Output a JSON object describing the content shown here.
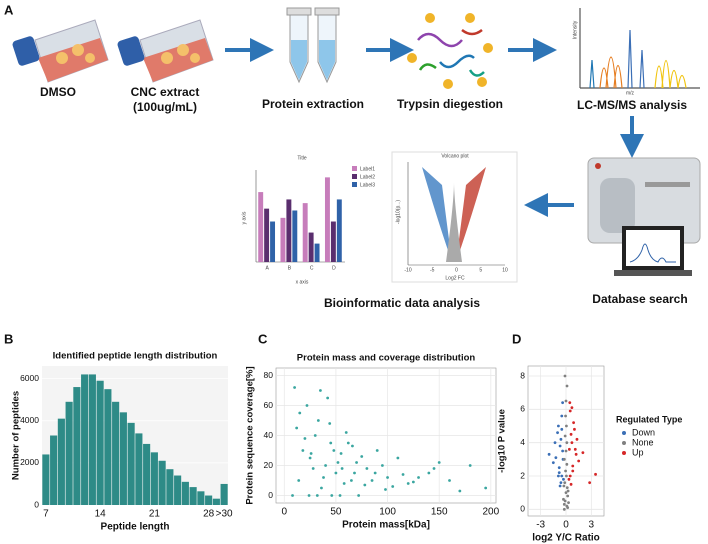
{
  "panel_a": {
    "label": "A",
    "steps": {
      "dmso": "DMSO",
      "cnc": "CNC extract",
      "cnc_dose": "(100ug/mL)",
      "extraction": "Protein extraction",
      "trypsin": "Trypsin diegestion",
      "lcms": "LC-MS/MS analysis",
      "database": "Database search",
      "bioinfo": "Bioinformatic data analysis"
    },
    "spectrum": {
      "ylabel": "Intensity",
      "xlabel": "m/z"
    },
    "mini_bar": {
      "title": "Title",
      "xlabel": "x axis",
      "ylabel": "y axis",
      "categories": [
        "A",
        "B",
        "C",
        "D"
      ],
      "ylim": [
        0,
        25
      ],
      "series": [
        {
          "name": "Label1",
          "color": "#c77dbb",
          "values": [
            19,
            12,
            16,
            23
          ]
        },
        {
          "name": "Label2",
          "color": "#5a2e6e",
          "values": [
            14.5,
            17,
            8,
            11
          ]
        },
        {
          "name": "Label3",
          "color": "#2f62a8",
          "values": [
            11,
            14,
            5,
            17
          ]
        }
      ]
    },
    "mini_volcano": {
      "title": "Volcano plot",
      "xlabel": "Log2 FC",
      "ylabel": "-log10(p...)",
      "xlim": [
        -10,
        10
      ],
      "xticks": [
        -10,
        -5,
        0,
        5,
        10
      ]
    }
  },
  "chart_data": [
    {
      "type": "bar",
      "panel": "B",
      "title": "Identified peptide length distribution",
      "xlabel": "Peptide length",
      "ylabel": "Number of peptides",
      "categories": [
        "7",
        null,
        null,
        null,
        null,
        null,
        null,
        "14",
        null,
        null,
        null,
        null,
        null,
        null,
        "21",
        null,
        null,
        null,
        null,
        null,
        null,
        "28",
        null,
        ">30"
      ],
      "values": [
        2400,
        3300,
        4100,
        4900,
        5600,
        6200,
        6200,
        5900,
        5500,
        4900,
        4400,
        3900,
        3400,
        2900,
        2500,
        2100,
        1700,
        1400,
        1100,
        850,
        650,
        450,
        300,
        1000
      ],
      "color": "#2e8b87",
      "ylim": [
        0,
        6600
      ],
      "yticks": [
        0,
        2000,
        4000,
        6000
      ],
      "grid": true
    },
    {
      "type": "scatter",
      "panel": "C",
      "title": "Protein mass and coverage distribution",
      "xlabel": "Protein mass[kDa]",
      "ylabel": "Protein sequence coverage[%]",
      "x": [
        12,
        18,
        22,
        25,
        30,
        35,
        40,
        45,
        50,
        55,
        60,
        65,
        70,
        80,
        90,
        100,
        110,
        120,
        140,
        160,
        180,
        195,
        15,
        20,
        28,
        33,
        38,
        42,
        48,
        52,
        58,
        62,
        68,
        75,
        85,
        95,
        105,
        115,
        130,
        150,
        170,
        10,
        14,
        26,
        36,
        44,
        56,
        66,
        78,
        88,
        98,
        125,
        145,
        8,
        24,
        32,
        46,
        54,
        72
      ],
      "values": [
        45,
        30,
        60,
        25,
        40,
        70,
        20,
        35,
        15,
        28,
        42,
        10,
        22,
        18,
        30,
        12,
        25,
        8,
        15,
        10,
        20,
        5,
        55,
        38,
        18,
        50,
        12,
        65,
        30,
        22,
        8,
        35,
        15,
        26,
        10,
        20,
        6,
        14,
        12,
        22,
        3,
        72,
        10,
        28,
        5,
        48,
        18,
        33,
        7,
        15,
        4,
        9,
        18,
        0,
        0,
        0,
        0,
        0,
        0
      ],
      "color": "#3aa6a0",
      "xlim": [
        -8,
        205
      ],
      "ylim": [
        -5,
        85
      ],
      "xticks": [
        0,
        50,
        100,
        150,
        200
      ],
      "yticks": [
        0,
        20,
        40,
        60,
        80
      ],
      "grid": true
    },
    {
      "type": "scatter",
      "panel": "D",
      "xlabel": "log2 Y/C Ratio",
      "ylabel": "-log10 P value",
      "legend_title": "Regulated Type",
      "legend": "right",
      "xlim": [
        -4.5,
        4.5
      ],
      "ylim": [
        -0.4,
        8.6
      ],
      "xticks": [
        -3,
        0,
        3
      ],
      "yticks": [
        0,
        2,
        4,
        6,
        8
      ],
      "grid": true,
      "series": [
        {
          "name": "Down",
          "color": "#3b6fb6",
          "x": [
            -0.5,
            -0.8,
            -1.2,
            -0.4,
            -0.6,
            -1.5,
            -0.9,
            -0.3,
            -0.7,
            -1.0,
            -0.5,
            -2.0,
            -0.4,
            -0.8,
            -0.6,
            -1.3,
            -0.35,
            -0.9,
            -0.5,
            -0.7
          ],
          "values": [
            2.0,
            2.5,
            3.1,
            3.5,
            4.2,
            2.8,
            5.0,
            1.8,
            3.8,
            4.6,
            5.6,
            3.3,
            6.4,
            2.2,
            1.6,
            4.0,
            3.0,
            2.0,
            4.8,
            1.4
          ]
        },
        {
          "name": "None",
          "color": "#808080",
          "x": [
            -0.2,
            0.1,
            -0.1,
            0.2,
            0,
            0.15,
            -0.15,
            0.05,
            -0.05,
            0.3,
            -0.3,
            0.1,
            -0.2,
            0.25,
            -0.25,
            0,
            0.1,
            -0.1,
            0.2,
            -0.2,
            0.05,
            -0.05,
            0,
            0.12,
            -0.12
          ],
          "values": [
            0,
            0.2,
            0.5,
            0.8,
            1.0,
            1.3,
            1.6,
            2.0,
            2.3,
            0.4,
            0.6,
            2.7,
            3.0,
            1.1,
            1.4,
            3.5,
            4.0,
            4.4,
            0.1,
            0.3,
            5.0,
            5.6,
            6.5,
            7.4,
            8.0
          ]
        },
        {
          "name": "Up",
          "color": "#d62728",
          "x": [
            0.5,
            0.8,
            1.2,
            0.4,
            0.6,
            1.5,
            0.9,
            0.35,
            0.7,
            1.0,
            0.5,
            2.0,
            0.45,
            0.8,
            0.6,
            1.3,
            2.8,
            3.5,
            1.1,
            0.7
          ],
          "values": [
            2.0,
            2.6,
            3.3,
            3.6,
            4.5,
            2.9,
            5.2,
            1.8,
            4.0,
            4.8,
            5.9,
            3.4,
            6.4,
            2.3,
            1.5,
            4.2,
            1.6,
            2.1,
            3.6,
            6.1
          ]
        }
      ]
    }
  ]
}
